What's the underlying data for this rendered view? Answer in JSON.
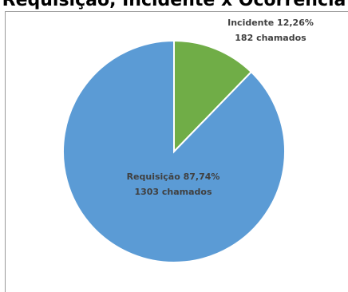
{
  "chart_data": {
    "type": "pie",
    "title": "Requisição, Incidente x Ocorrência",
    "slices": [
      {
        "name": "Incidente",
        "percent_label": "12,26%",
        "percent": 12.26,
        "count_label": "182 chamados",
        "count": 182,
        "color": "#70ad47"
      },
      {
        "name": "Requisição",
        "percent_label": "87,74%",
        "percent": 87.74,
        "count_label": "1303 chamados",
        "count": 1303,
        "color": "#5b9bd5"
      }
    ],
    "start_angle": "top (12 o'clock), clockwise",
    "legend": "none",
    "label_color": "#404040"
  }
}
